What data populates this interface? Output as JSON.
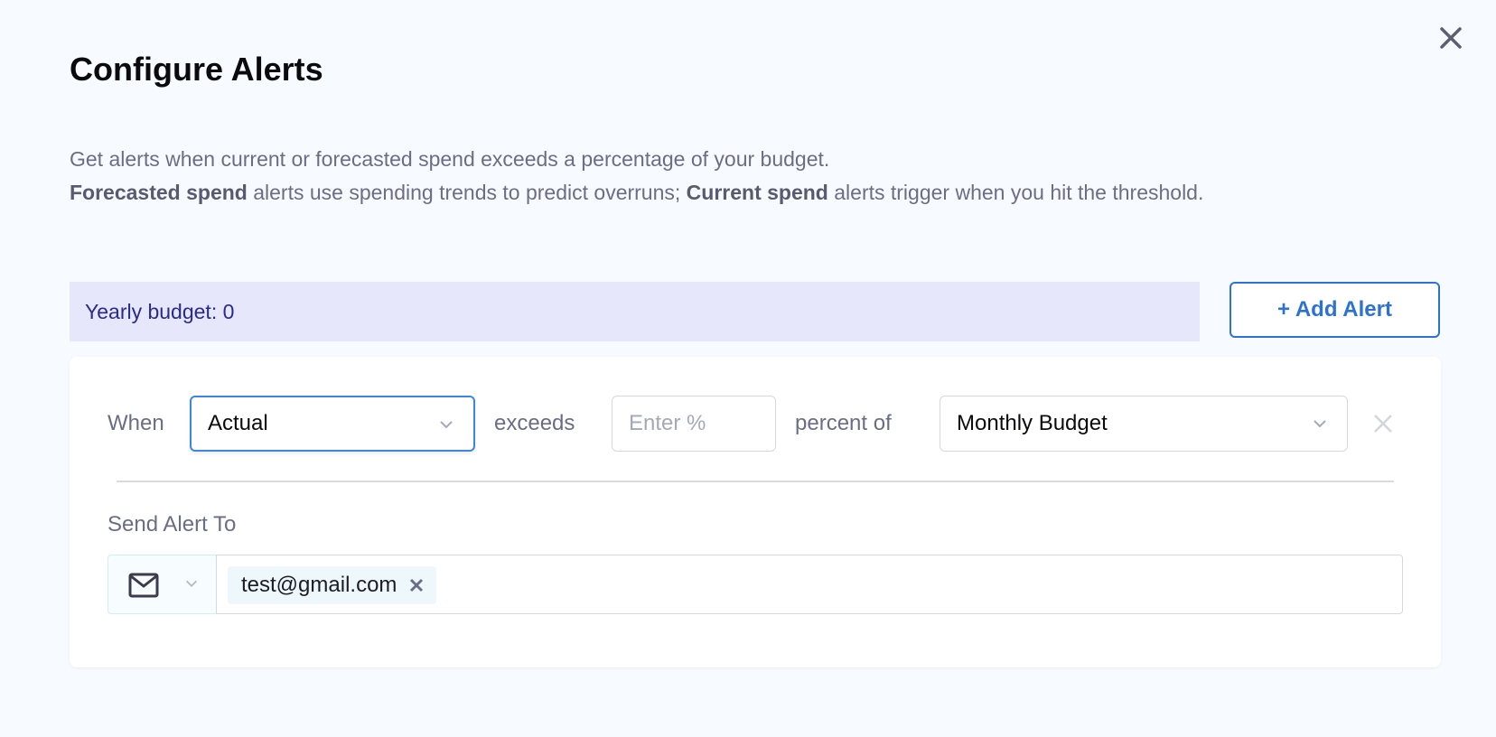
{
  "dialog": {
    "title": "Configure Alerts",
    "close_icon": "close-icon",
    "description": {
      "line1": "Get alerts when current or forecasted spend exceeds a percentage of your budget.",
      "forecast_bold": "Forecasted spend",
      "forecast_text": " alerts use spending trends to predict overruns; ",
      "current_bold": "Current spend",
      "current_text": " alerts trigger when you hit the threshold."
    },
    "budget_label": "Yearly budget: 0",
    "add_alert_label": "+ Add Alert",
    "accent_color": "#2d72d2"
  },
  "alert": {
    "when_label": "When",
    "type_value": "Actual",
    "exceeds_label": "exceeds",
    "percent_placeholder": "Enter %",
    "percent_of_label": "percent of",
    "budget_value": "Monthly Budget",
    "send_to_label": "Send Alert To",
    "channel_icon": "mail-icon",
    "recipients": [
      "test@gmail.com"
    ]
  }
}
